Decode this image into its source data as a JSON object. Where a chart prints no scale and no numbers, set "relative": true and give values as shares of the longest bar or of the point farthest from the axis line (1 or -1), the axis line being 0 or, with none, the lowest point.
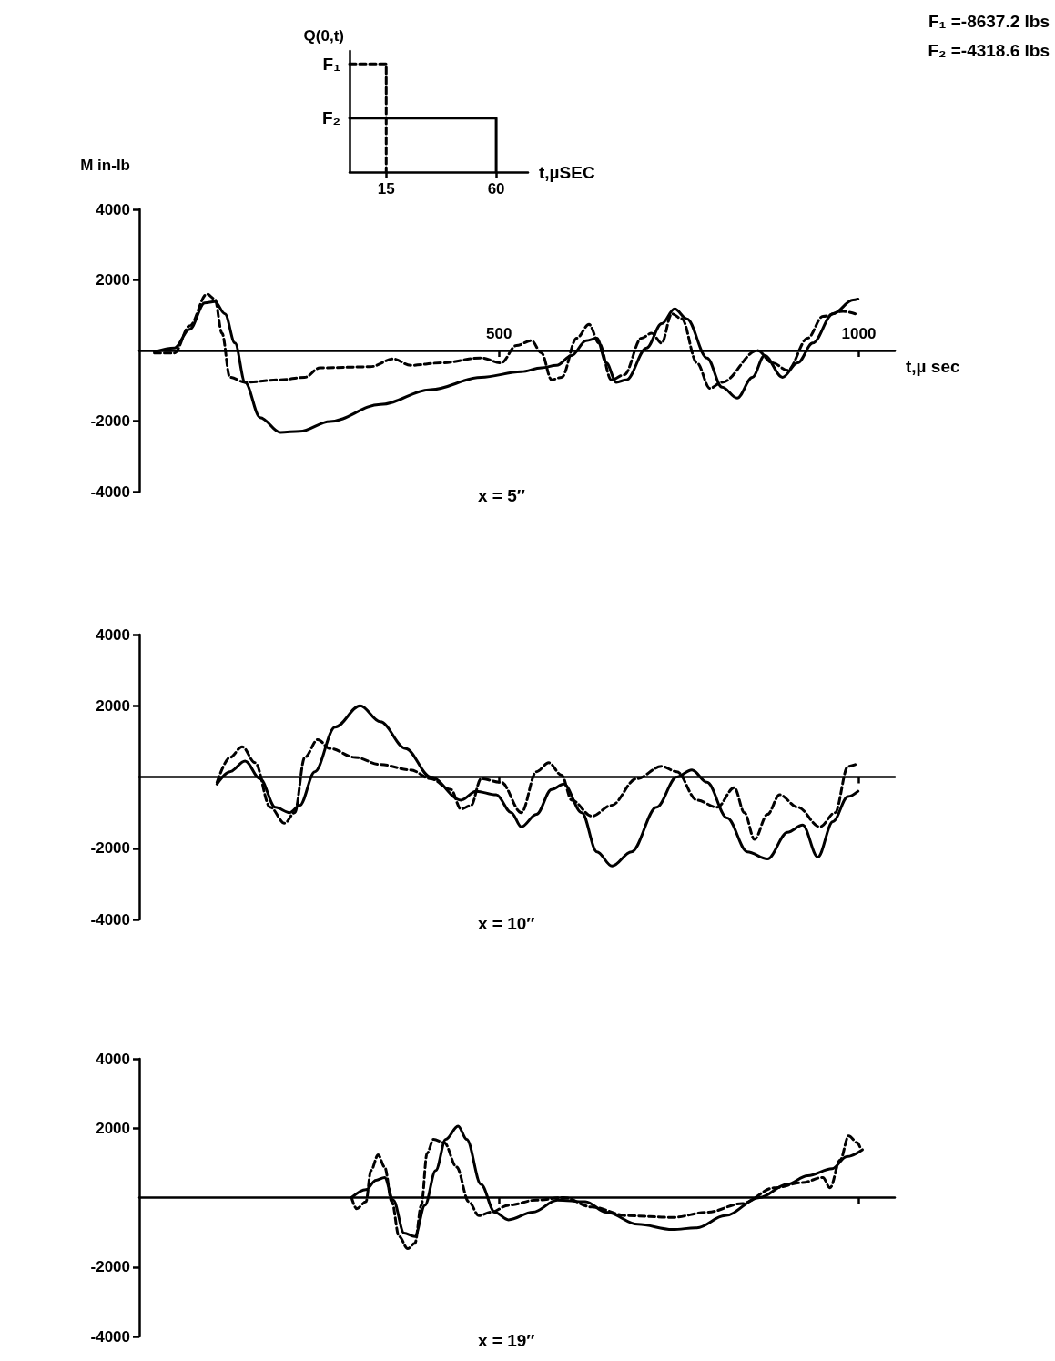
{
  "chart_data": [
    {
      "type": "step",
      "relative": true,
      "ylabel": "Q(0,t)",
      "xlabel": "t,µSEC",
      "xlim": [
        0,
        73
      ],
      "xticks": [
        15,
        60
      ],
      "marker": "none",
      "annotations": [
        "F₁ =-8637.2 lbs",
        "F₂ =-4318.6 lbs",
        {
          "text": "F₁",
          "x": 0,
          "y": 1
        },
        {
          "text": "F₂",
          "x": 0,
          "y": 0.5
        }
      ],
      "series": [
        {
          "color": "#000000",
          "line_style": "dashed",
          "x": [
            0,
            15
          ],
          "values": [
            1,
            0
          ]
        },
        {
          "color": "#000000",
          "line_style": "solid",
          "x": [
            0,
            60
          ],
          "values": [
            0.5,
            0
          ]
        }
      ]
    },
    {
      "type": "line",
      "title": "x = 5″",
      "ylabel": "M in-lb",
      "xlabel": "t,µ sec",
      "xlim": [
        0,
        1050
      ],
      "xticks": [
        500,
        1000
      ],
      "ylim": [
        -4000,
        4000
      ],
      "yticks": [
        -4000,
        -2000,
        2000,
        4000
      ],
      "marker": "none",
      "series": [
        {
          "color": "#000000",
          "line_style": "solid",
          "x": [
            21,
            49,
            70,
            91,
            105,
            119,
            133,
            147,
            168,
            196,
            223,
            265,
            335,
            405,
            475,
            531,
            559,
            580,
            601,
            621,
            636,
            649,
            663,
            677,
            705,
            726,
            744,
            761,
            789,
            810,
            831,
            852,
            869,
            894,
            915,
            936,
            964,
            992,
            999
          ],
          "values": [
            -40,
            70,
            600,
            1350,
            1390,
            1040,
            210,
            -900,
            -1900,
            -2320,
            -2290,
            -2010,
            -1530,
            -1110,
            -760,
            -600,
            -490,
            -420,
            -140,
            280,
            350,
            -350,
            -900,
            -830,
            70,
            760,
            1180,
            900,
            -210,
            -1040,
            -1350,
            -760,
            -140,
            -760,
            -350,
            210,
            1040,
            1430,
            1460
          ]
        },
        {
          "color": "#000000",
          "line_style": "dashed",
          "x": [
            21,
            49,
            70,
            94,
            105,
            115,
            126,
            147,
            196,
            230,
            251,
            321,
            353,
            377,
            419,
            475,
            503,
            524,
            545,
            559,
            573,
            587,
            608,
            625,
            639,
            656,
            674,
            698,
            712,
            726,
            740,
            754,
            775,
            793,
            810,
            859,
            880,
            901,
            929,
            950,
            978,
            995
          ],
          "values": [
            -70,
            -70,
            700,
            1600,
            1460,
            490,
            -760,
            -900,
            -830,
            -760,
            -490,
            -460,
            -240,
            -420,
            -350,
            -210,
            -350,
            140,
            280,
            -70,
            -830,
            -760,
            350,
            740,
            210,
            -830,
            -690,
            350,
            490,
            210,
            1040,
            900,
            -350,
            -1070,
            -900,
            0,
            -350,
            -560,
            350,
            970,
            1110,
            1040
          ]
        }
      ]
    },
    {
      "type": "line",
      "title": "x = 10″",
      "xlim": [
        0,
        1050
      ],
      "xticks": [
        500,
        1000
      ],
      "ylim": [
        -4000,
        4000
      ],
      "yticks": [
        -4000,
        -2000,
        2000,
        4000
      ],
      "tick_labels": "y",
      "marker": "none",
      "series": [
        {
          "color": "#000000",
          "line_style": "solid",
          "x": [
            108,
            126,
            147,
            168,
            189,
            209,
            223,
            244,
            272,
            307,
            335,
            370,
            405,
            447,
            468,
            496,
            517,
            531,
            552,
            573,
            590,
            615,
            636,
            657,
            684,
            719,
            747,
            768,
            789,
            817,
            845,
            873,
            901,
            922,
            943,
            964,
            985,
            999
          ],
          "values": [
            -200,
            150,
            450,
            -50,
            -850,
            -1000,
            -800,
            150,
            1400,
            2000,
            1550,
            800,
            0,
            -650,
            -400,
            -500,
            -1000,
            -1400,
            -1050,
            -350,
            -200,
            -1000,
            -2100,
            -2500,
            -2100,
            -850,
            0,
            200,
            -150,
            -1150,
            -2100,
            -2300,
            -1550,
            -1350,
            -2250,
            -1250,
            -550,
            -400
          ]
        },
        {
          "color": "#000000",
          "line_style": "dashed",
          "x": [
            108,
            126,
            143,
            161,
            182,
            202,
            216,
            230,
            248,
            265,
            300,
            335,
            377,
            405,
            433,
            447,
            461,
            475,
            503,
            531,
            552,
            569,
            587,
            601,
            629,
            656,
            691,
            726,
            747,
            775,
            803,
            827,
            841,
            855,
            873,
            890,
            915,
            946,
            967,
            985,
            995
          ],
          "values": [
            -150,
            550,
            850,
            400,
            -850,
            -1300,
            -1000,
            550,
            1050,
            800,
            550,
            350,
            200,
            -50,
            -350,
            -900,
            -800,
            -50,
            -150,
            -1000,
            150,
            400,
            50,
            -650,
            -1100,
            -800,
            -50,
            300,
            150,
            -650,
            -850,
            -300,
            -1000,
            -1750,
            -1050,
            -500,
            -850,
            -1400,
            -1000,
            300,
            350
          ]
        }
      ]
    },
    {
      "type": "line",
      "title": "x = 19″",
      "xlim": [
        0,
        1050
      ],
      "xticks": [
        500,
        1000
      ],
      "ylim": [
        -4000,
        4000
      ],
      "yticks": [
        -4000,
        -2000,
        2000,
        4000
      ],
      "tick_labels": "y",
      "marker": "none",
      "series": [
        {
          "color": "#000000",
          "line_style": "solid",
          "x": [
            295,
            315,
            329,
            341,
            353,
            368,
            383,
            397,
            412,
            426,
            443,
            455,
            475,
            494,
            513,
            547,
            581,
            620,
            649,
            693,
            741,
            775,
            814,
            862,
            900,
            929,
            963,
            983,
            1005
          ],
          "values": [
            0,
            230,
            500,
            580,
            -70,
            -1020,
            -1120,
            -220,
            780,
            1680,
            2060,
            1680,
            380,
            -420,
            -640,
            -420,
            -70,
            -120,
            -420,
            -770,
            -920,
            -870,
            -520,
            0,
            380,
            630,
            830,
            1180,
            1380
          ]
        },
        {
          "color": "#000000",
          "line_style": "dashed",
          "x": [
            295,
            302,
            315,
            322,
            332,
            341,
            351,
            361,
            373,
            383,
            392,
            400,
            409,
            424,
            441,
            458,
            472,
            489,
            513,
            552,
            590,
            629,
            678,
            741,
            790,
            838,
            882,
            921,
            950,
            960,
            974,
            986,
            998,
            1003
          ],
          "values": [
            0,
            -320,
            -120,
            780,
            1230,
            880,
            -120,
            -1120,
            -1470,
            -1320,
            -220,
            1280,
            1680,
            1580,
            880,
            -120,
            -520,
            -420,
            -220,
            -70,
            0,
            -270,
            -520,
            -570,
            -420,
            -170,
            280,
            430,
            580,
            280,
            1080,
            1780,
            1580,
            1380
          ]
        }
      ]
    }
  ]
}
